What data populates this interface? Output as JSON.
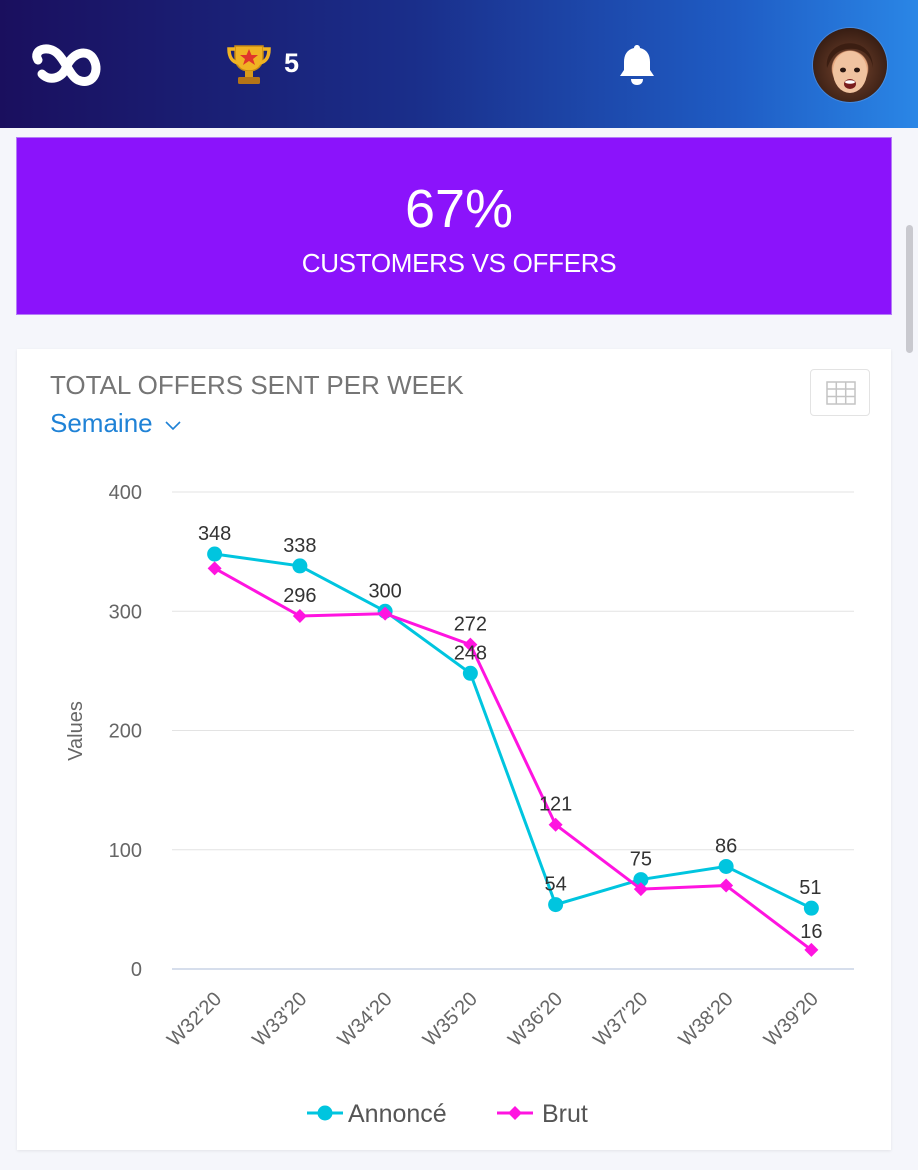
{
  "header": {
    "trophy_count": "5",
    "icons": [
      "logo-icon",
      "trophy-icon",
      "bell-icon",
      "avatar"
    ]
  },
  "kpi": {
    "value": "67%",
    "label": "CUSTOMERS VS OFFERS",
    "color": "#8b13fb"
  },
  "card": {
    "title": "TOTAL OFFERS SENT PER WEEK",
    "period_label": "Semaine",
    "table_icon": "table-grid-icon"
  },
  "chart_data": {
    "type": "line",
    "categories": [
      "W32'20",
      "W33'20",
      "W34'20",
      "W35'20",
      "W36'20",
      "W37'20",
      "W38'20",
      "W39'20"
    ],
    "series": [
      {
        "name": "Annoncé",
        "color": "#00c5df",
        "marker": "circle",
        "values": [
          348,
          338,
          300,
          248,
          54,
          75,
          86,
          51
        ]
      },
      {
        "name": "Brut",
        "color": "#ff14e0",
        "marker": "diamond",
        "values": [
          336,
          296,
          298,
          272,
          121,
          67,
          70,
          16
        ]
      }
    ],
    "labels_shown": {
      "Annoncé": [
        "348",
        "338",
        "300",
        "248",
        "54",
        "75",
        "86",
        "51"
      ],
      "Brut": [
        "",
        "296",
        "",
        "272",
        "121",
        "",
        "",
        "16"
      ]
    },
    "ylabel": "Values",
    "yticks": [
      0,
      100,
      200,
      300,
      400
    ],
    "ylim": [
      0,
      400
    ],
    "grid": true,
    "legend": "bottom"
  }
}
